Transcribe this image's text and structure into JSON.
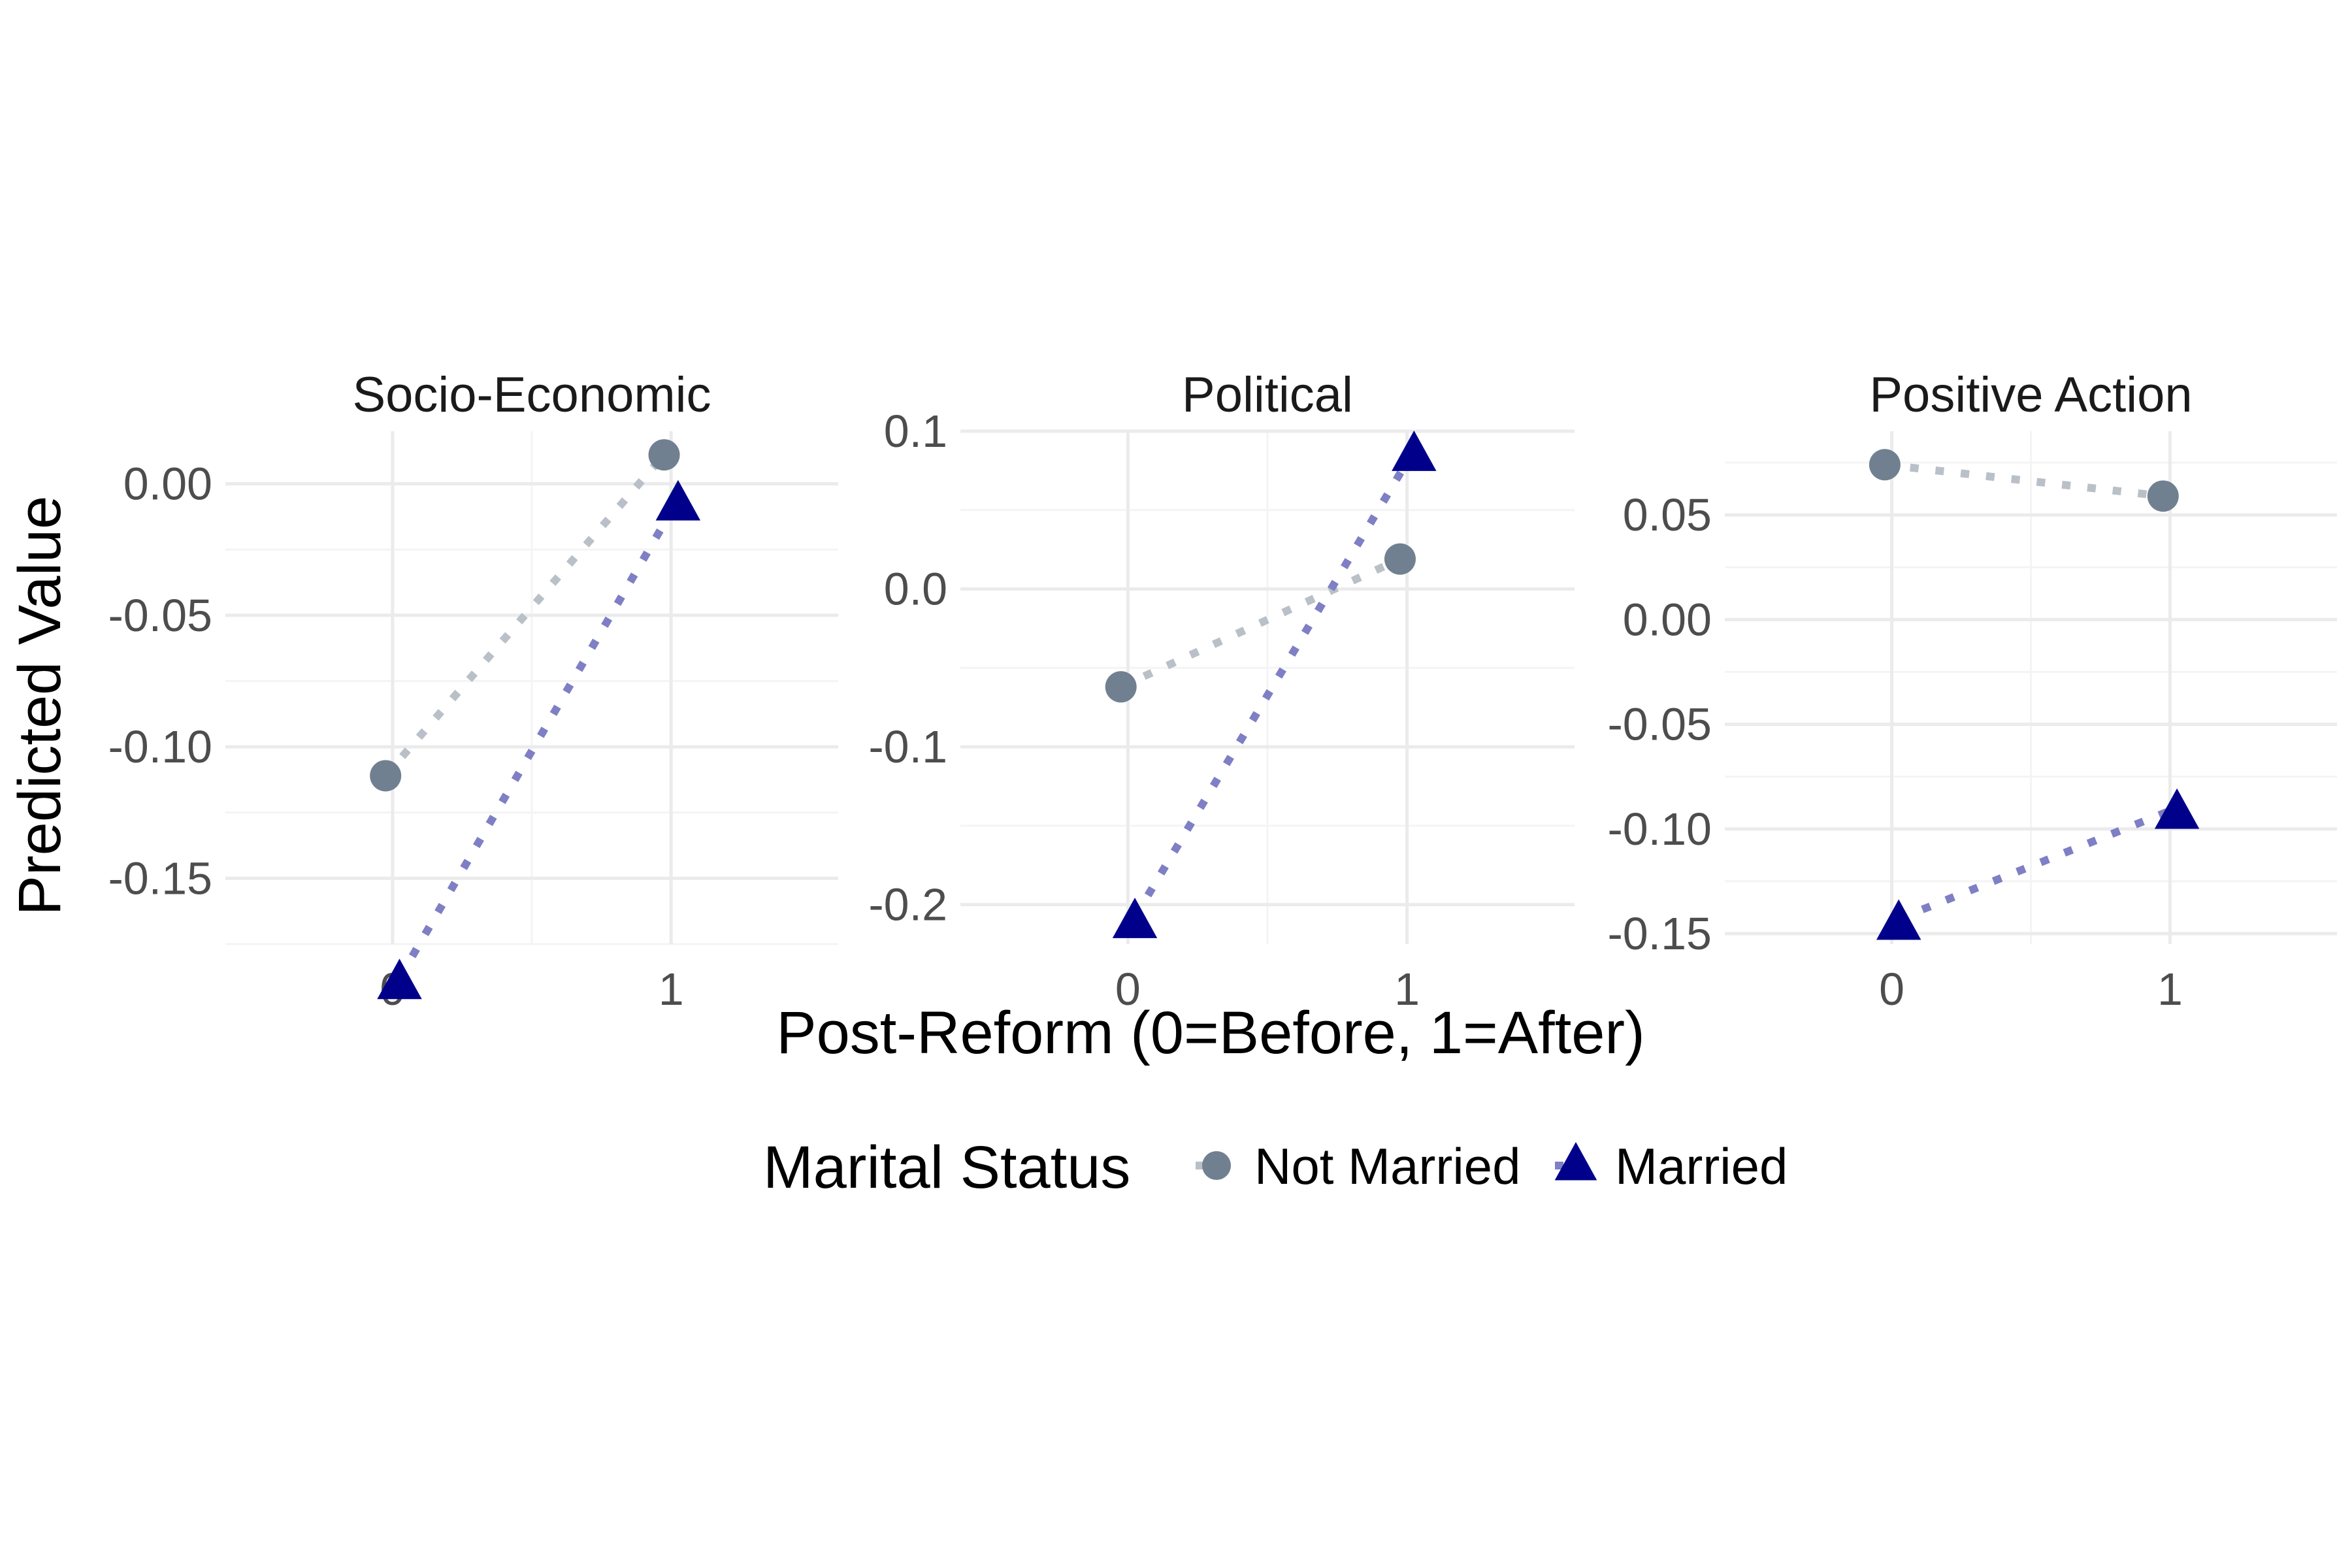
{
  "chart_data": {
    "type": "line",
    "layout": "faceted",
    "shared_axis_labels": {
      "xlabel": "Post-Reform (0=Before, 1=After)",
      "ylabel": "Predicted Value"
    },
    "legend": {
      "title": "Marital Status",
      "placement": "bottom",
      "entries": [
        "Not Married",
        "Married"
      ]
    },
    "series_styles": [
      {
        "name": "Not Married",
        "marker": "circle",
        "point_color": "#708090",
        "line_color": "#B9C0C8",
        "line_style": "dotted"
      },
      {
        "name": "Married",
        "marker": "triangle",
        "point_color": "#00008B",
        "line_color": "#7F7FC5",
        "line_style": "dotted"
      }
    ],
    "grid": true,
    "panels": [
      {
        "title": "Socio-Economic",
        "x": [
          0,
          1
        ],
        "x_ticks": [
          "0",
          "1"
        ],
        "xlim": [
          -0.6,
          1.6
        ],
        "ylim": [
          -0.175,
          0.02
        ],
        "y_ticks": [
          "0.00",
          "-0.05",
          "-0.10",
          "-0.15"
        ],
        "series": [
          {
            "name": "Not Married",
            "values": [
              -0.111,
              0.011
            ]
          },
          {
            "name": "Married",
            "values": [
              -0.188,
              -0.006
            ]
          }
        ]
      },
      {
        "title": "Political",
        "x": [
          0,
          1
        ],
        "x_ticks": [
          "0",
          "1"
        ],
        "xlim": [
          -0.6,
          1.6
        ],
        "ylim": [
          -0.225,
          0.1
        ],
        "y_ticks": [
          "0.1",
          "0.0",
          "-0.1",
          "-0.2"
        ],
        "series": [
          {
            "name": "Not Married",
            "values": [
              -0.062,
              0.019
            ]
          },
          {
            "name": "Married",
            "values": [
              -0.208,
              0.088
            ]
          }
        ]
      },
      {
        "title": "Positive Action",
        "x": [
          0,
          1
        ],
        "x_ticks": [
          "0",
          "1"
        ],
        "xlim": [
          -0.6,
          1.6
        ],
        "ylim": [
          -0.155,
          0.09
        ],
        "y_ticks": [
          "0.05",
          "0.00",
          "-0.05",
          "-0.10",
          "-0.15"
        ],
        "series": [
          {
            "name": "Not Married",
            "values": [
              0.074,
              0.059
            ]
          },
          {
            "name": "Married",
            "values": [
              -0.143,
              -0.09
            ]
          }
        ]
      }
    ]
  },
  "colors": {
    "panel_title": "#1a1a1a",
    "tick_label": "#4d4d4d",
    "grid_major": "#ebebeb",
    "grid_minor": "#f4f4f4",
    "axis_title": "#000000"
  }
}
